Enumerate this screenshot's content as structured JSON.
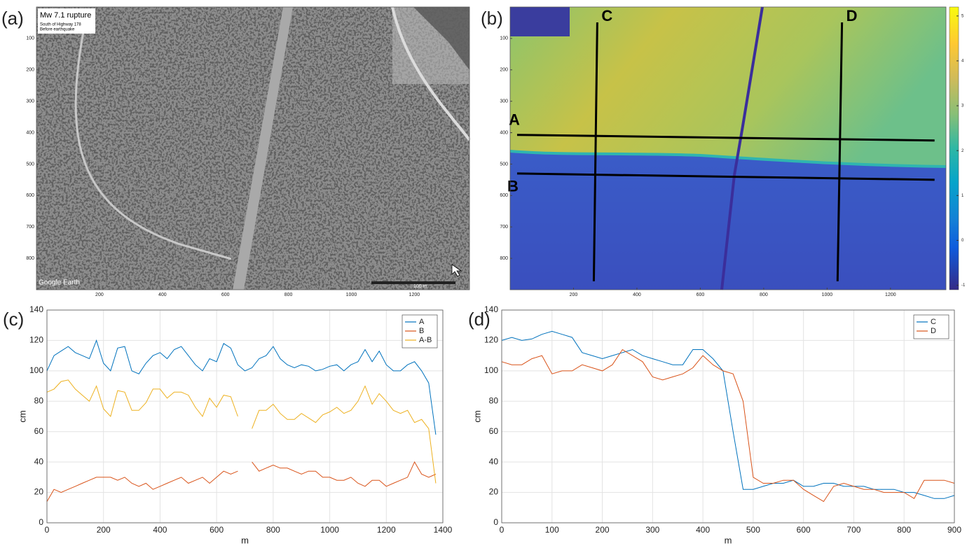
{
  "chart_data": [
    {
      "type": "image",
      "panel": "(a)",
      "annotations": [
        "Mw 7.1 rupture",
        "South of Highway 178",
        "Before earthquake",
        "Google Earth",
        "100 m"
      ],
      "xlim": [
        0,
        1375
      ],
      "ylim": [
        0,
        900
      ],
      "yreverse": true,
      "xticks": [
        200,
        400,
        600,
        800,
        1000,
        1200
      ],
      "yticks": [
        100,
        200,
        300,
        400,
        500,
        600,
        700,
        800
      ]
    },
    {
      "type": "map",
      "panel": "(b)",
      "xlim": [
        0,
        1375
      ],
      "ylim": [
        0,
        900
      ],
      "yreverse": true,
      "xticks": [
        200,
        400,
        600,
        800,
        1000,
        1200
      ],
      "yticks": [
        100,
        200,
        300,
        400,
        500,
        600,
        700,
        800
      ],
      "colorbar": {
        "lim": [
          -1.1,
          5.2
        ],
        "ticks": [
          -1,
          0,
          1,
          2,
          3,
          4,
          5
        ]
      },
      "profiles": [
        {
          "name": "A",
          "x": [
            22,
            1339
          ],
          "y": [
            407,
            425
          ]
        },
        {
          "name": "B",
          "x": [
            22,
            1339
          ],
          "y": [
            530,
            550
          ]
        },
        {
          "name": "C",
          "x": [
            275,
            264
          ],
          "y": [
            49,
            873
          ]
        },
        {
          "name": "D",
          "x": [
            1047,
            1033
          ],
          "y": [
            49,
            873
          ]
        }
      ],
      "profile_color": "#000000"
    },
    {
      "type": "line",
      "panel": "(c)",
      "xlabel": "m",
      "ylabel": "cm",
      "xlim": [
        0,
        1400
      ],
      "ylim": [
        0,
        140
      ],
      "xticks": [
        0,
        200,
        400,
        600,
        800,
        1000,
        1200,
        1400
      ],
      "yticks": [
        0,
        20,
        40,
        60,
        80,
        100,
        120,
        140
      ],
      "grid": true,
      "legend": "upper right",
      "x": [
        0,
        25,
        50,
        75,
        100,
        125,
        150,
        175,
        200,
        225,
        250,
        275,
        300,
        325,
        350,
        375,
        400,
        425,
        450,
        475,
        500,
        525,
        550,
        575,
        600,
        625,
        650,
        675,
        700,
        725,
        750,
        775,
        800,
        825,
        850,
        875,
        900,
        925,
        950,
        975,
        1000,
        1025,
        1050,
        1075,
        1100,
        1125,
        1150,
        1175,
        1200,
        1225,
        1250,
        1275,
        1300,
        1325,
        1350,
        1375
      ],
      "series": [
        {
          "name": "A",
          "color": "#0072bd",
          "values": [
            100,
            110,
            113,
            116,
            112,
            110,
            108,
            120,
            105,
            100,
            115,
            116,
            100,
            98,
            105,
            110,
            112,
            108,
            114,
            116,
            110,
            104,
            100,
            108,
            106,
            118,
            115,
            104,
            100,
            102,
            108,
            110,
            116,
            108,
            104,
            102,
            104,
            103,
            100,
            101,
            103,
            104,
            100,
            104,
            106,
            114,
            106,
            113,
            104,
            100,
            100,
            104,
            106,
            100,
            92,
            58
          ]
        },
        {
          "name": "B",
          "color": "#d95319",
          "values": [
            14,
            22,
            20,
            22,
            24,
            26,
            28,
            30,
            30,
            30,
            28,
            30,
            26,
            24,
            26,
            22,
            24,
            26,
            28,
            30,
            26,
            28,
            30,
            26,
            30,
            34,
            32,
            34,
            null,
            40,
            34,
            36,
            38,
            36,
            36,
            34,
            32,
            34,
            34,
            30,
            30,
            28,
            28,
            30,
            26,
            24,
            28,
            28,
            24,
            26,
            28,
            30,
            40,
            32,
            30,
            32
          ]
        },
        {
          "name": "A-B",
          "color": "#edb120",
          "values": [
            86,
            88,
            93,
            94,
            88,
            84,
            80,
            90,
            75,
            70,
            87,
            86,
            74,
            74,
            79,
            88,
            88,
            82,
            86,
            86,
            84,
            76,
            70,
            82,
            76,
            84,
            83,
            70,
            null,
            62,
            74,
            74,
            78,
            72,
            68,
            68,
            72,
            69,
            66,
            71,
            73,
            76,
            72,
            74,
            80,
            90,
            78,
            85,
            80,
            74,
            72,
            74,
            66,
            68,
            62,
            26
          ]
        }
      ]
    },
    {
      "type": "line",
      "panel": "(d)",
      "xlabel": "m",
      "ylabel": "cm",
      "xlim": [
        0,
        900
      ],
      "ylim": [
        0,
        140
      ],
      "xticks": [
        0,
        100,
        200,
        300,
        400,
        500,
        600,
        700,
        800,
        900
      ],
      "yticks": [
        0,
        20,
        40,
        60,
        80,
        100,
        120,
        140
      ],
      "grid": true,
      "legend": "upper right",
      "x": [
        0,
        20,
        40,
        60,
        80,
        100,
        120,
        140,
        160,
        180,
        200,
        220,
        240,
        260,
        280,
        300,
        320,
        340,
        360,
        380,
        400,
        420,
        440,
        460,
        480,
        500,
        520,
        540,
        560,
        580,
        600,
        620,
        640,
        660,
        680,
        700,
        720,
        740,
        760,
        780,
        800,
        820,
        840,
        860,
        880,
        900
      ],
      "series": [
        {
          "name": "C",
          "color": "#0072bd",
          "values": [
            120,
            122,
            120,
            121,
            124,
            126,
            124,
            122,
            112,
            110,
            108,
            110,
            112,
            114,
            110,
            108,
            106,
            104,
            104,
            114,
            114,
            108,
            100,
            60,
            22,
            22,
            24,
            26,
            26,
            28,
            24,
            24,
            26,
            26,
            24,
            24,
            24,
            22,
            22,
            22,
            20,
            20,
            18,
            16,
            16,
            18
          ]
        },
        {
          "name": "D",
          "color": "#d95319",
          "values": [
            106,
            104,
            104,
            108,
            110,
            98,
            100,
            100,
            104,
            102,
            100,
            104,
            114,
            110,
            106,
            96,
            94,
            96,
            98,
            102,
            110,
            104,
            100,
            98,
            80,
            30,
            26,
            26,
            28,
            28,
            22,
            18,
            14,
            24,
            26,
            24,
            22,
            22,
            20,
            20,
            20,
            16,
            28,
            28,
            28,
            26
          ]
        }
      ]
    }
  ]
}
